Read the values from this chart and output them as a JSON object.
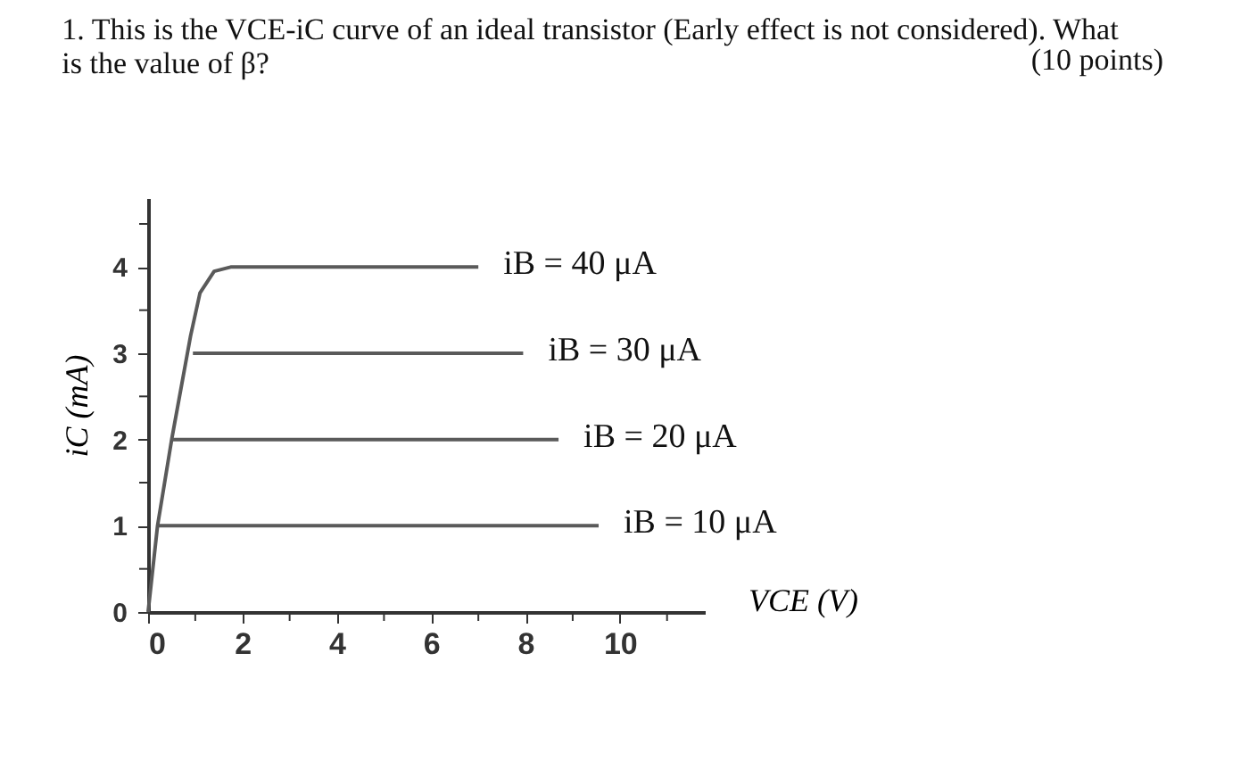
{
  "chart_data": {
    "type": "line",
    "title": [
      "1. This is the VCE-iC curve of an ideal transistor (Early effect is not considered). What",
      "is the value of β?"
    ],
    "annotations": [
      "(10 points)"
    ],
    "xlabel": "VCE (V)",
    "ylabel": "iC (mA)",
    "xlim": [
      0,
      11.8
    ],
    "ylim": [
      0,
      4.8
    ],
    "xticks": [
      0,
      {
        "value": 1,
        "label": null
      },
      2,
      {
        "value": 3,
        "label": null
      },
      4,
      {
        "value": 5,
        "label": null
      },
      6,
      {
        "value": 7,
        "label": null
      },
      8,
      {
        "value": 9,
        "label": null
      },
      10,
      {
        "value": 11,
        "label": null
      }
    ],
    "yticks": [
      0,
      {
        "value": 0.5,
        "label": null
      },
      1,
      {
        "value": 1.5,
        "label": null
      },
      2,
      {
        "value": 2.5,
        "label": null
      },
      3,
      {
        "value": 3.5,
        "label": null
      },
      4,
      {
        "value": 4.5,
        "label": null
      }
    ],
    "grid": false,
    "marker": "none",
    "line_style": "solid",
    "series": [
      {
        "name": "iB = 40 μA",
        "color": "#5a5a5a",
        "x": [
          0,
          0.2,
          0.5,
          0.9,
          1.1,
          1.4,
          1.75,
          7.0
        ],
        "values": [
          0,
          1,
          2,
          3.2,
          3.7,
          3.95,
          4,
          4
        ]
      },
      {
        "name": "iB = 30 μA",
        "color": "#5a5a5a",
        "x": [
          0.95,
          7.95
        ],
        "values": [
          3,
          3
        ]
      },
      {
        "name": "iB = 20 μA",
        "color": "#5a5a5a",
        "x": [
          0.5,
          8.7
        ],
        "values": [
          2,
          2
        ]
      },
      {
        "name": "iB = 10 μA",
        "color": "#5a5a5a",
        "x": [
          0.2,
          9.55
        ],
        "values": [
          1,
          1
        ]
      }
    ]
  }
}
